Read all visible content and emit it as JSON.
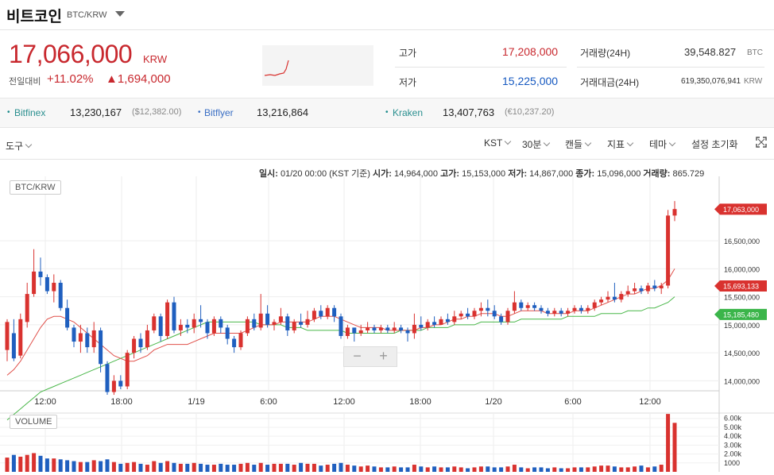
{
  "header": {
    "title": "비트코인",
    "pair": "BTC/KRW",
    "price": "17,066,000",
    "price_unit": "KRW",
    "change_label": "전일대비",
    "change_pct": "+11.02%",
    "change_amt": "▲1,694,000"
  },
  "stats": {
    "high_label": "고가",
    "high": "17,208,000",
    "low_label": "저가",
    "low": "15,225,000",
    "vol_label": "거래량(24H)",
    "vol": "39,548.827",
    "vol_unit": "BTC",
    "amt_label": "거래대금(24H)",
    "amt": "619,350,076,941",
    "amt_unit": "KRW"
  },
  "exchanges": [
    {
      "name": "Bitfinex",
      "value": "13,230,167",
      "sub": "($12,382.00)"
    },
    {
      "name": "Bitflyer",
      "value": "13,216,864",
      "sub": ""
    },
    {
      "name": "Kraken",
      "value": "13,407,763",
      "sub": "(€10,237.20)"
    }
  ],
  "toolbar": {
    "tools": "도구",
    "tz": "KST",
    "interval": "30분",
    "chart_type": "캔들",
    "indicator": "지표",
    "theme": "테마",
    "reset": "설정 초기화"
  },
  "ohlc": {
    "time_label": "일시:",
    "time": "01/20 00:00 (KST 기준)",
    "open_label": "시가:",
    "open": "14,964,000",
    "high_label": "고가:",
    "high": "15,153,000",
    "low_label": "저가:",
    "low": "14,867,000",
    "close_label": "종가:",
    "close": "15,096,000",
    "vol_label": "거래량:",
    "vol": "865.729"
  },
  "chart_data": {
    "type": "candlestick",
    "pair_label": "BTC/KRW",
    "volume_label": "VOLUME",
    "x_ticks": [
      "12:00",
      "18:00",
      "1/19",
      "6:00",
      "12:00",
      "18:00",
      "1/20",
      "6:00",
      "12:00"
    ],
    "y_ticks": [
      "16,500,000",
      "16,000,000",
      "15,500,000",
      "15,000,000",
      "14,500,000",
      "14,000,000"
    ],
    "y_tick_values": [
      16500000,
      16000000,
      15500000,
      15000000,
      14500000,
      14000000
    ],
    "ylim": [
      13850000,
      17650000
    ],
    "vol_ticks": [
      "6.00k",
      "5.00k",
      "4.00k",
      "3.00k",
      "2.00k",
      "1000"
    ],
    "vol_tick_values": [
      6000,
      5000,
      4000,
      3000,
      2000,
      1000
    ],
    "vol_ylim": [
      0,
      6600
    ],
    "price_markers": [
      {
        "label": "17,063,000",
        "value": 17063000,
        "color": "#d9322f"
      },
      {
        "label": "15,693,133",
        "value": 15693133,
        "color": "#d9322f"
      },
      {
        "label": "15,185,480",
        "value": 15185480,
        "color": "#3bb54a"
      }
    ],
    "colors": {
      "up": "#d9322f",
      "down": "#1f5fbf",
      "ma_fast": "#e0504a",
      "ma_slow": "#49b749"
    },
    "candles": [
      [
        14550,
        15050,
        15100,
        14350
      ],
      [
        14850,
        14400,
        15100,
        14350
      ],
      [
        14450,
        15100,
        15200,
        14400
      ],
      [
        15050,
        15550,
        15750,
        14950
      ],
      [
        15550,
        15950,
        16350,
        15500
      ],
      [
        15950,
        15850,
        16200,
        15700
      ],
      [
        15850,
        15600,
        15900,
        15550
      ],
      [
        15600,
        15750,
        15900,
        15400
      ],
      [
        15750,
        15300,
        15800,
        15250
      ],
      [
        15300,
        14950,
        15450,
        14900
      ],
      [
        14950,
        14700,
        15000,
        14600
      ],
      [
        14700,
        14850,
        15000,
        14500
      ],
      [
        14850,
        14600,
        14950,
        14500
      ],
      [
        14600,
        14900,
        15050,
        14500
      ],
      [
        14900,
        14300,
        14950,
        14150
      ],
      [
        14300,
        13800,
        14350,
        13750
      ],
      [
        13800,
        14000,
        14100,
        13750
      ],
      [
        14000,
        13900,
        14100,
        13850
      ],
      [
        13900,
        14500,
        14550,
        13850
      ],
      [
        14500,
        14750,
        14800,
        14400
      ],
      [
        14750,
        14600,
        14850,
        14500
      ],
      [
        14600,
        14900,
        15000,
        14550
      ],
      [
        14900,
        15150,
        15200,
        14850
      ],
      [
        15150,
        14800,
        15200,
        14700
      ],
      [
        14800,
        15400,
        15450,
        14750
      ],
      [
        15400,
        14900,
        15500,
        14850
      ],
      [
        14900,
        15000,
        15100,
        14800
      ],
      [
        15000,
        14950,
        15100,
        14850
      ],
      [
        14950,
        15100,
        15200,
        14850
      ],
      [
        15100,
        15050,
        15350,
        14950
      ],
      [
        15050,
        14850,
        15100,
        14750
      ],
      [
        14850,
        15100,
        15150,
        14800
      ],
      [
        15100,
        14950,
        15150,
        14850
      ],
      [
        14950,
        14750,
        15000,
        14650
      ],
      [
        14750,
        14600,
        14800,
        14500
      ],
      [
        14600,
        14850,
        14900,
        14550
      ],
      [
        14850,
        15100,
        15150,
        14800
      ],
      [
        15100,
        14950,
        15200,
        14900
      ],
      [
        14950,
        15200,
        15550,
        14900
      ],
      [
        15200,
        15000,
        15350,
        14950
      ],
      [
        15000,
        15050,
        15100,
        14900
      ],
      [
        15050,
        15150,
        15300,
        15000
      ],
      [
        15150,
        14900,
        15200,
        14800
      ],
      [
        14900,
        15050,
        15100,
        14850
      ],
      [
        15050,
        15000,
        15200,
        14950
      ],
      [
        15000,
        15100,
        15250,
        14950
      ],
      [
        15100,
        15250,
        15300,
        15050
      ],
      [
        15250,
        15150,
        15350,
        15100
      ],
      [
        15150,
        15300,
        15350,
        15100
      ],
      [
        15300,
        15150,
        15350,
        15050
      ],
      [
        15150,
        14800,
        15200,
        14750
      ],
      [
        14800,
        14950,
        15000,
        14750
      ],
      [
        14950,
        14850,
        14950,
        14700
      ],
      [
        14850,
        14900,
        15000,
        14800
      ],
      [
        14900,
        14950,
        15050,
        14850
      ],
      [
        14950,
        14900,
        15000,
        14850
      ],
      [
        14900,
        14950,
        15000,
        14850
      ],
      [
        14950,
        14900,
        15000,
        14850
      ],
      [
        14900,
        14950,
        15050,
        14850
      ],
      [
        14950,
        14900,
        15000,
        14850
      ],
      [
        14900,
        14850,
        14950,
        14700
      ],
      [
        14850,
        15000,
        15200,
        14750
      ],
      [
        15000,
        14950,
        15150,
        14900
      ],
      [
        14950,
        15050,
        15100,
        14900
      ],
      [
        15050,
        15000,
        15150,
        14950
      ],
      [
        15000,
        15100,
        15150,
        15000
      ],
      [
        15100,
        15050,
        15200,
        15000
      ],
      [
        15050,
        15150,
        15250,
        15000
      ],
      [
        15150,
        15200,
        15250,
        15100
      ],
      [
        15200,
        15150,
        15300,
        15100
      ],
      [
        15150,
        15250,
        15300,
        15100
      ],
      [
        15250,
        15300,
        15400,
        15150
      ],
      [
        15300,
        15250,
        15450,
        15150
      ],
      [
        15250,
        15150,
        15350,
        15100
      ],
      [
        15150,
        15050,
        15200,
        15000
      ],
      [
        15050,
        15250,
        15300,
        15000
      ],
      [
        15250,
        15400,
        15600,
        15200
      ],
      [
        15400,
        15300,
        15450,
        15250
      ],
      [
        15300,
        15350,
        15400,
        15250
      ],
      [
        15350,
        15300,
        15400,
        15250
      ],
      [
        15300,
        15250,
        15350,
        15200
      ],
      [
        15250,
        15200,
        15300,
        15150
      ],
      [
        15200,
        15250,
        15300,
        15150
      ],
      [
        15250,
        15200,
        15300,
        15150
      ],
      [
        15200,
        15250,
        15300,
        15150
      ],
      [
        15250,
        15300,
        15350,
        15200
      ],
      [
        15300,
        15250,
        15350,
        15200
      ],
      [
        15250,
        15300,
        15350,
        15200
      ],
      [
        15300,
        15400,
        15450,
        15250
      ],
      [
        15400,
        15450,
        15500,
        15350
      ],
      [
        15450,
        15500,
        15600,
        15400
      ],
      [
        15500,
        15450,
        15750,
        15400
      ],
      [
        15450,
        15550,
        15600,
        15400
      ],
      [
        15550,
        15600,
        15700,
        15500
      ],
      [
        15600,
        15650,
        15750,
        15550
      ],
      [
        15650,
        15600,
        15700,
        15550
      ],
      [
        15600,
        15700,
        15750,
        15550
      ],
      [
        15700,
        15650,
        15800,
        15600
      ],
      [
        15650,
        15700,
        15750,
        15550
      ],
      [
        15700,
        16950,
        17050,
        15650
      ],
      [
        16950,
        17066,
        17208,
        16850
      ]
    ],
    "volumes": [
      1600,
      1900,
      1700,
      1900,
      2100,
      1800,
      1500,
      1500,
      1400,
      1300,
      1200,
      1100,
      1100,
      1300,
      1200,
      1400,
      1100,
      900,
      1000,
      1100,
      900,
      800,
      1200,
      1000,
      1200,
      1000,
      900,
      900,
      1000,
      900,
      800,
      800,
      900,
      800,
      800,
      900,
      1000,
      800,
      1000,
      800,
      900,
      900,
      900,
      800,
      1000,
      900,
      900,
      700,
      800,
      900,
      1000,
      800,
      700,
      600,
      700,
      600,
      500,
      500,
      600,
      500,
      500,
      800,
      600,
      500,
      600,
      500,
      500,
      600,
      500,
      400,
      500,
      600,
      600,
      500,
      500,
      600,
      800,
      500,
      400,
      500,
      500,
      400,
      500,
      400,
      400,
      500,
      500,
      500,
      600,
      700,
      700,
      600,
      500,
      500,
      600,
      700,
      500,
      600,
      800,
      6500,
      5500
    ],
    "ma_fast": [
      14100,
      14200,
      14350,
      14550,
      14750,
      14950,
      15100,
      15150,
      15150,
      15100,
      15050,
      14950,
      14850,
      14750,
      14650,
      14550,
      14450,
      14400,
      14350,
      14350,
      14400,
      14450,
      14550,
      14600,
      14650,
      14650,
      14650,
      14650,
      14700,
      14750,
      14800,
      14850,
      14850,
      14850,
      14850,
      14850,
      14900,
      14950,
      15000,
      15000,
      15000,
      15050,
      15050,
      15050,
      15050,
      15050,
      15100,
      15150,
      15150,
      15150,
      15100,
      15050,
      15000,
      14950,
      14950,
      14950,
      14950,
      14900,
      14900,
      14900,
      14900,
      14900,
      14950,
      14950,
      15000,
      15000,
      15050,
      15100,
      15100,
      15150,
      15150,
      15200,
      15200,
      15200,
      15150,
      15150,
      15200,
      15250,
      15250,
      15250,
      15250,
      15200,
      15200,
      15200,
      15200,
      15250,
      15250,
      15250,
      15300,
      15350,
      15400,
      15450,
      15500,
      15550,
      15550,
      15600,
      15650,
      15650,
      15700,
      15800,
      16000
    ],
    "ma_slow": [
      13300,
      13400,
      13500,
      13600,
      13700,
      13800,
      13850,
      13900,
      13950,
      14000,
      14050,
      14100,
      14150,
      14200,
      14250,
      14300,
      14350,
      14400,
      14450,
      14500,
      14550,
      14600,
      14650,
      14700,
      14750,
      14800,
      14850,
      14900,
      14950,
      15000,
      15050,
      15050,
      15050,
      15050,
      15050,
      15050,
      15050,
      15050,
      15000,
      15000,
      15000,
      15000,
      14950,
      14950,
      14950,
      14900,
      14900,
      14900,
      14900,
      14900,
      14900,
      14850,
      14850,
      14850,
      14850,
      14850,
      14850,
      14850,
      14850,
      14900,
      14900,
      14900,
      14900,
      14950,
      14950,
      14950,
      14950,
      15000,
      15000,
      15000,
      15000,
      15050,
      15050,
      15050,
      15050,
      15050,
      15050,
      15100,
      15100,
      15100,
      15100,
      15100,
      15100,
      15100,
      15150,
      15150,
      15150,
      15150,
      15150,
      15200,
      15200,
      15200,
      15200,
      15250,
      15250,
      15250,
      15300,
      15300,
      15350,
      15400,
      15500
    ]
  }
}
